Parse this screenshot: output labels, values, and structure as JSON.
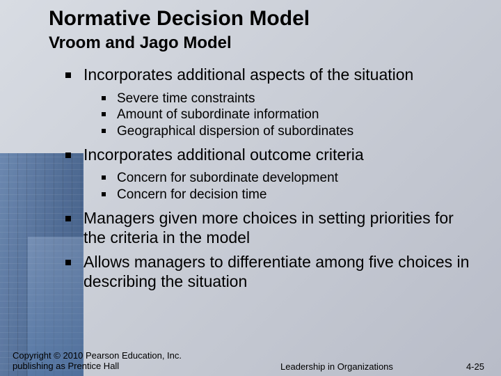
{
  "slide": {
    "title": "Normative Decision Model",
    "subtitle": "Vroom and Jago Model",
    "bullets": [
      {
        "text": "Incorporates additional aspects of the situation",
        "children": [
          "Severe time constraints",
          "Amount of subordinate information",
          "Geographical dispersion of subordinates"
        ]
      },
      {
        "text": "Incorporates additional outcome criteria",
        "children": [
          "Concern for subordinate development",
          "Concern for decision time"
        ]
      },
      {
        "text": "Managers given more choices in setting priorities for the criteria in the model",
        "children": []
      },
      {
        "text": "Allows managers to differentiate among five choices in describing the situation",
        "children": []
      }
    ]
  },
  "footer": {
    "copyright": "Copyright © 2010 Pearson Education, Inc. publishing as Prentice Hall",
    "center": "Leadership in Organizations",
    "page": "4-25"
  },
  "style": {
    "background_gradient": [
      "#d8dce3",
      "#c8ccd5",
      "#b8bcc8"
    ],
    "building_colors": [
      "#5a7ba8",
      "#2a4a78"
    ],
    "title_fontsize": 30,
    "subtitle_fontsize": 24,
    "lvl1_fontsize": 23,
    "lvl2_fontsize": 19,
    "footer_fontsize": 13,
    "text_color": "#000000",
    "bullet_color": "#000000"
  }
}
